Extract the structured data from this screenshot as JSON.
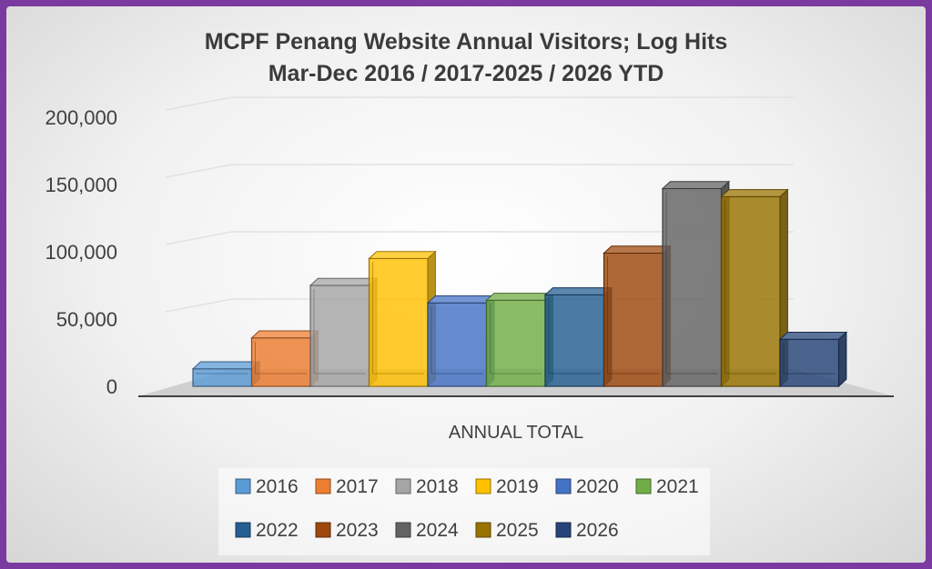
{
  "chart_data": {
    "type": "bar",
    "style": "3d-clustered-column",
    "title": "MCPF Penang Website Annual Visitors; Log Hits",
    "subtitle": "Mar-Dec 2016 / 2017-2025 / 2026 YTD",
    "categories": [
      "ANNUAL TOTAL"
    ],
    "ylim": [
      0,
      200000
    ],
    "yticks": [
      0,
      50000,
      100000,
      150000,
      200000
    ],
    "ytick_labels": [
      "0",
      "50,000",
      "100,000",
      "150,000",
      "200,000"
    ],
    "grid": true,
    "legend_position": "bottom",
    "series": [
      {
        "name": "2016",
        "values": [
          13000
        ],
        "color": "#5b9bd5"
      },
      {
        "name": "2017",
        "values": [
          36000
        ],
        "color": "#ed7d31"
      },
      {
        "name": "2018",
        "values": [
          75000
        ],
        "color": "#a5a5a5"
      },
      {
        "name": "2019",
        "values": [
          95000
        ],
        "color": "#ffc000"
      },
      {
        "name": "2020",
        "values": [
          62000
        ],
        "color": "#4472c4"
      },
      {
        "name": "2021",
        "values": [
          64000
        ],
        "color": "#70ad47"
      },
      {
        "name": "2022",
        "values": [
          68000
        ],
        "color": "#255e91"
      },
      {
        "name": "2023",
        "values": [
          99000
        ],
        "color": "#9e480e"
      },
      {
        "name": "2024",
        "values": [
          147000
        ],
        "color": "#636363"
      },
      {
        "name": "2025",
        "values": [
          141000
        ],
        "color": "#997300"
      },
      {
        "name": "2026",
        "values": [
          35000
        ],
        "color": "#264478"
      }
    ]
  }
}
